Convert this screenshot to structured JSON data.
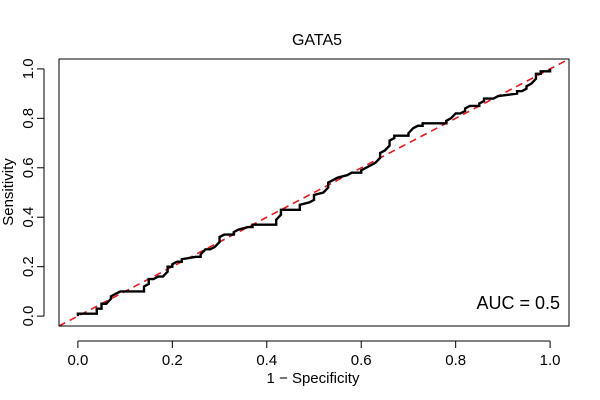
{
  "chart_data": {
    "type": "line",
    "title": "GATA5",
    "xlabel": "1 − Specificity",
    "ylabel": "Sensitivity",
    "xlim": [
      -0.04,
      1.04
    ],
    "ylim": [
      -0.04,
      1.04
    ],
    "x_ticks": [
      0.0,
      0.2,
      0.4,
      0.6,
      0.8,
      1.0
    ],
    "x_tick_labels": [
      "0.0",
      "0.2",
      "0.4",
      "0.6",
      "0.8",
      "1.0"
    ],
    "y_ticks": [
      0.0,
      0.2,
      0.4,
      0.6,
      0.8,
      1.0
    ],
    "y_tick_labels": [
      "0.0",
      "0.2",
      "0.4",
      "0.6",
      "0.8",
      "1.0"
    ],
    "grid": false,
    "legend": "none",
    "annotation": "AUC = 0.5",
    "series": [
      {
        "style": "solid",
        "color": "#000000",
        "x": [
          0.0,
          0.0,
          0.01,
          0.04,
          0.04,
          0.05,
          0.05,
          0.06,
          0.07,
          0.07,
          0.08,
          0.08,
          0.09,
          0.09,
          0.14,
          0.14,
          0.15,
          0.15,
          0.16,
          0.17,
          0.17,
          0.18,
          0.19,
          0.19,
          0.2,
          0.2,
          0.21,
          0.22,
          0.22,
          0.25,
          0.26,
          0.26,
          0.27,
          0.28,
          0.29,
          0.3,
          0.3,
          0.31,
          0.32,
          0.33,
          0.33,
          0.34,
          0.36,
          0.37,
          0.37,
          0.42,
          0.42,
          0.43,
          0.43,
          0.47,
          0.47,
          0.49,
          0.5,
          0.5,
          0.52,
          0.53,
          0.53,
          0.54,
          0.55,
          0.55,
          0.57,
          0.58,
          0.6,
          0.6,
          0.61,
          0.63,
          0.64,
          0.64,
          0.65,
          0.66,
          0.66,
          0.67,
          0.67,
          0.7,
          0.7,
          0.71,
          0.72,
          0.73,
          0.73,
          0.78,
          0.78,
          0.79,
          0.8,
          0.81,
          0.82,
          0.82,
          0.83,
          0.85,
          0.85,
          0.86,
          0.86,
          0.88,
          0.89,
          0.89,
          0.93,
          0.93,
          0.94,
          0.95,
          0.95,
          0.96,
          0.97,
          0.97,
          0.98,
          0.98,
          1.0,
          1.0
        ],
        "y": [
          0.0,
          0.01,
          0.01,
          0.01,
          0.03,
          0.03,
          0.05,
          0.05,
          0.07,
          0.08,
          0.09,
          0.09,
          0.1,
          0.1,
          0.1,
          0.12,
          0.13,
          0.15,
          0.15,
          0.16,
          0.16,
          0.16,
          0.18,
          0.2,
          0.2,
          0.21,
          0.22,
          0.22,
          0.23,
          0.24,
          0.24,
          0.25,
          0.27,
          0.27,
          0.28,
          0.3,
          0.32,
          0.33,
          0.33,
          0.33,
          0.34,
          0.35,
          0.36,
          0.36,
          0.37,
          0.37,
          0.39,
          0.41,
          0.43,
          0.43,
          0.45,
          0.46,
          0.47,
          0.49,
          0.5,
          0.52,
          0.54,
          0.55,
          0.56,
          0.56,
          0.57,
          0.58,
          0.58,
          0.59,
          0.6,
          0.62,
          0.64,
          0.66,
          0.67,
          0.69,
          0.71,
          0.72,
          0.73,
          0.73,
          0.74,
          0.76,
          0.77,
          0.77,
          0.78,
          0.78,
          0.79,
          0.8,
          0.82,
          0.82,
          0.83,
          0.84,
          0.85,
          0.85,
          0.86,
          0.87,
          0.88,
          0.88,
          0.89,
          0.89,
          0.9,
          0.91,
          0.91,
          0.92,
          0.93,
          0.94,
          0.96,
          0.98,
          0.98,
          0.99,
          0.99,
          1.0
        ]
      },
      {
        "style": "dashed",
        "color": "#e41a1c",
        "x": [
          -0.04,
          1.04
        ],
        "y": [
          -0.04,
          1.04
        ]
      }
    ]
  }
}
